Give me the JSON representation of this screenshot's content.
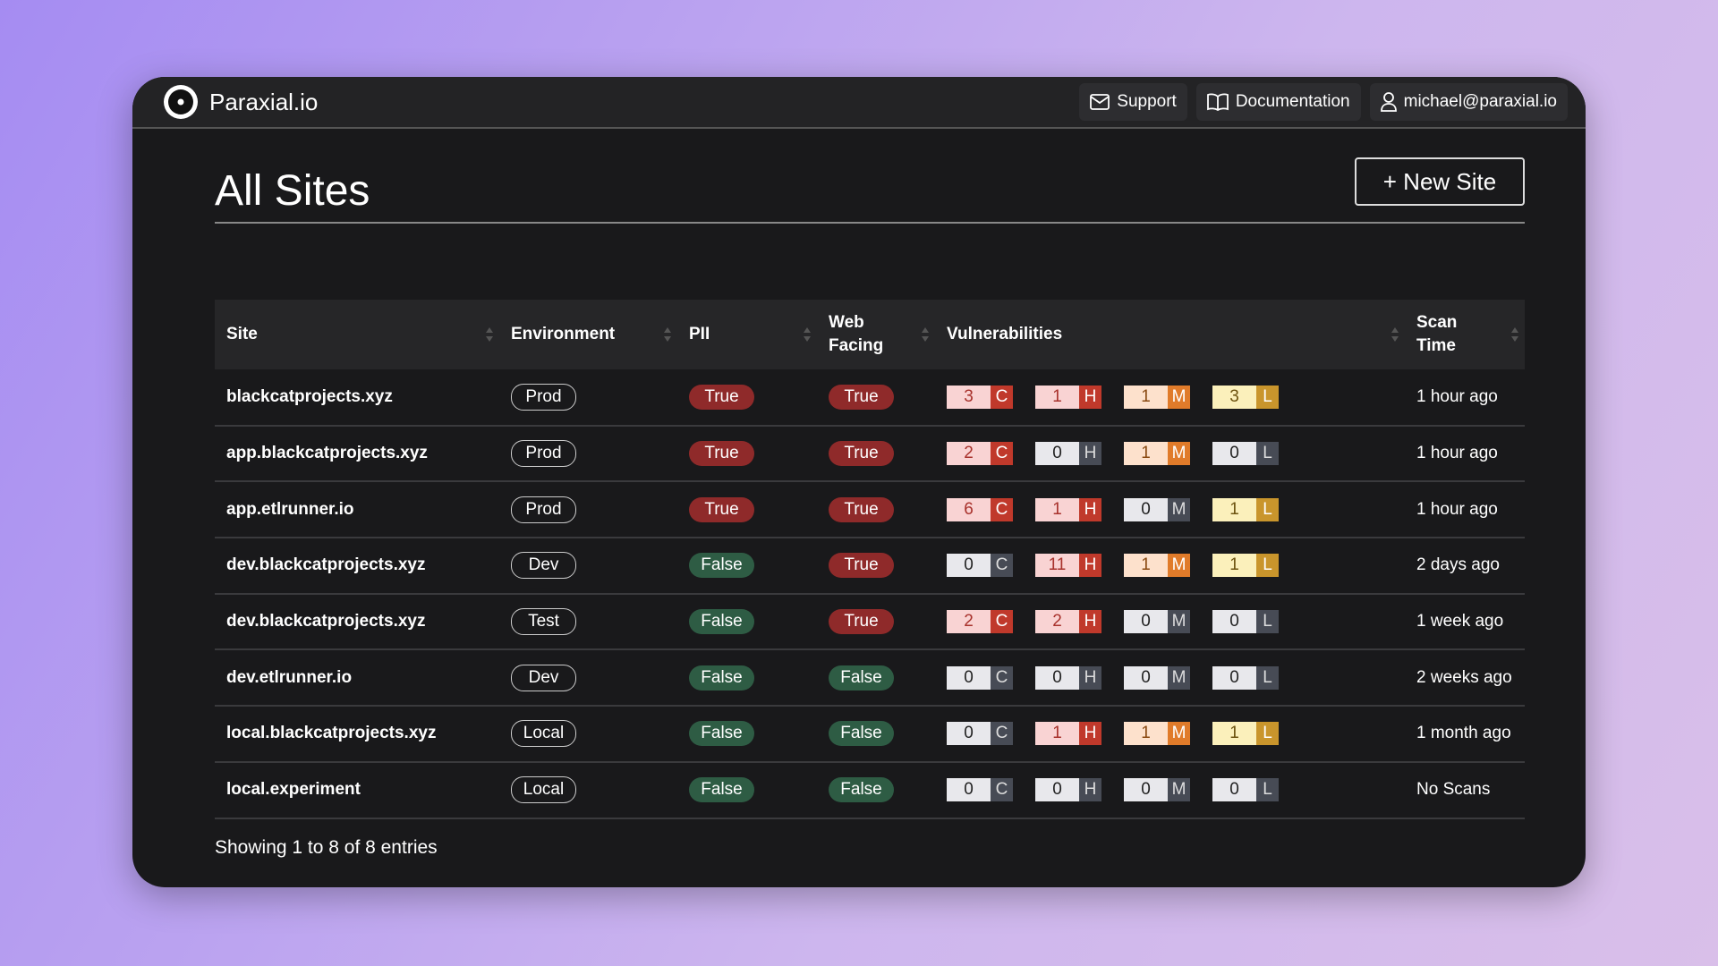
{
  "brand": "Paraxial.io",
  "nav": [
    "Support",
    "Documentation",
    "michael@paraxial.io"
  ],
  "page": {
    "title": "All Sites",
    "new_button": "+ New Site"
  },
  "table": {
    "headers": [
      "Site",
      "Environment",
      "PII",
      "Web Facing",
      "Vulnerabilities",
      "Scan Time"
    ],
    "severity_letters": [
      "C",
      "H",
      "M",
      "L"
    ],
    "rows": [
      {
        "site": "blackcatprojects.xyz",
        "environment": "Prod",
        "pii": "True",
        "web_facing": "True",
        "vulns": [
          3,
          1,
          1,
          3
        ],
        "scan_time": "1 hour ago"
      },
      {
        "site": "app.blackcatprojects.xyz",
        "environment": "Prod",
        "pii": "True",
        "web_facing": "True",
        "vulns": [
          2,
          0,
          1,
          0
        ],
        "scan_time": "1 hour ago"
      },
      {
        "site": "app.etlrunner.io",
        "environment": "Prod",
        "pii": "True",
        "web_facing": "True",
        "vulns": [
          6,
          1,
          0,
          1
        ],
        "scan_time": "1 hour ago"
      },
      {
        "site": "dev.blackcatprojects.xyz",
        "environment": "Dev",
        "pii": "False",
        "web_facing": "True",
        "vulns": [
          0,
          11,
          1,
          1
        ],
        "scan_time": "2 days ago"
      },
      {
        "site": "dev.blackcatprojects.xyz",
        "environment": "Test",
        "pii": "False",
        "web_facing": "True",
        "vulns": [
          2,
          2,
          0,
          0
        ],
        "scan_time": "1 week ago"
      },
      {
        "site": "dev.etlrunner.io",
        "environment": "Dev",
        "pii": "False",
        "web_facing": "False",
        "vulns": [
          0,
          0,
          0,
          0
        ],
        "scan_time": "2 weeks ago"
      },
      {
        "site": "local.blackcatprojects.xyz",
        "environment": "Local",
        "pii": "False",
        "web_facing": "False",
        "vulns": [
          0,
          1,
          1,
          1
        ],
        "scan_time": "1 month ago"
      },
      {
        "site": "local.experiment",
        "environment": "Local",
        "pii": "False",
        "web_facing": "False",
        "vulns": [
          0,
          0,
          0,
          0
        ],
        "scan_time": "No Scans"
      }
    ]
  },
  "footer": "Showing 1 to 8 of 8 entries"
}
